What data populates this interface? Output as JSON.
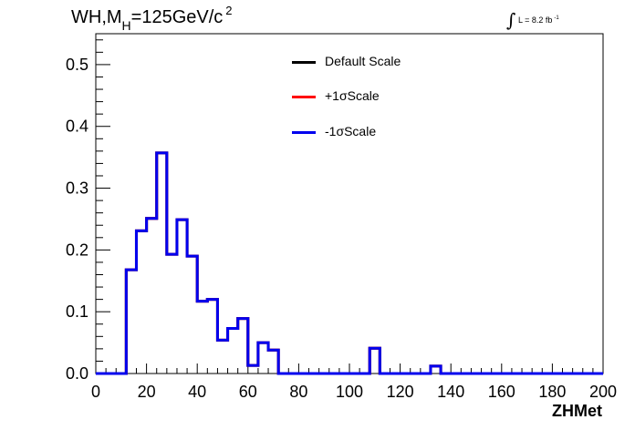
{
  "chart_data": {
    "type": "histogram",
    "title": {
      "main": "WH,M",
      "subscript": "H",
      "rest": "=125GeV/c",
      "superscript": "2"
    },
    "luminosity": {
      "integral": "∫",
      "text": "L = 8.2 fb",
      "superscript": "-1"
    },
    "xlabel": "ZHMet",
    "ylabel": "",
    "xlim": [
      0,
      200
    ],
    "ylim": [
      0,
      0.55
    ],
    "xticks": [
      "0",
      "20",
      "40",
      "60",
      "80",
      "100",
      "120",
      "140",
      "160",
      "180",
      "200"
    ],
    "yticks": [
      "0.0",
      "0.1",
      "0.2",
      "0.3",
      "0.4",
      "0.5"
    ],
    "bin_width": 4,
    "bin_edges_start": 0,
    "series": [
      {
        "name": "Default Scale",
        "color": "#000000",
        "values": [
          0,
          0,
          0,
          0.168,
          0.231,
          0.251,
          0.357,
          0.193,
          0.249,
          0.19,
          0.117,
          0.12,
          0.054,
          0.073,
          0.089,
          0.013,
          0.05,
          0.038,
          0,
          0,
          0,
          0,
          0,
          0,
          0,
          0,
          0,
          0.041,
          0,
          0,
          0,
          0,
          0,
          0.012,
          0,
          0,
          0,
          0,
          0,
          0,
          0,
          0,
          0,
          0,
          0,
          0,
          0,
          0,
          0,
          0
        ]
      },
      {
        "name": "+1σScale",
        "color": "#ff0000",
        "values": [
          0,
          0,
          0,
          0.168,
          0.231,
          0.251,
          0.357,
          0.193,
          0.249,
          0.19,
          0.117,
          0.12,
          0.054,
          0.073,
          0.089,
          0.013,
          0.05,
          0.038,
          0,
          0,
          0,
          0,
          0,
          0,
          0,
          0,
          0,
          0.041,
          0,
          0,
          0,
          0,
          0,
          0.012,
          0,
          0,
          0,
          0,
          0,
          0,
          0,
          0,
          0,
          0,
          0,
          0,
          0,
          0,
          0,
          0
        ]
      },
      {
        "name": "-1σScale",
        "color": "#0000ee",
        "values": [
          0,
          0,
          0,
          0.168,
          0.231,
          0.251,
          0.357,
          0.193,
          0.249,
          0.19,
          0.117,
          0.12,
          0.054,
          0.073,
          0.089,
          0.013,
          0.05,
          0.038,
          0,
          0,
          0,
          0,
          0,
          0,
          0,
          0,
          0,
          0.041,
          0,
          0,
          0,
          0,
          0,
          0.012,
          0,
          0,
          0,
          0,
          0,
          0,
          0,
          0,
          0,
          0,
          0,
          0,
          0,
          0,
          0,
          0
        ]
      }
    ],
    "legend_position": "top-center",
    "grid": false
  }
}
